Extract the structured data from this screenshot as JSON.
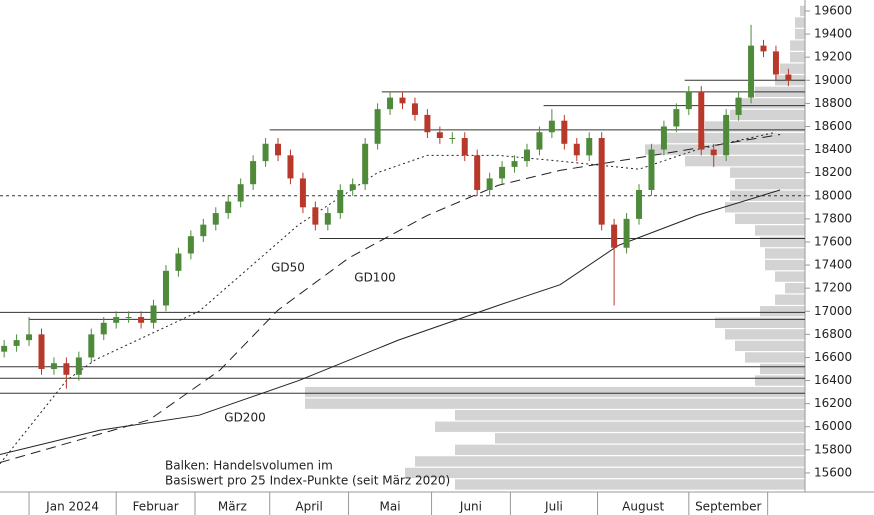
{
  "chart_data": {
    "type": "candlestick",
    "up_color": "#4e8a3a",
    "down_color": "#b8392c",
    "ma_color": "#222",
    "level_color": "#333",
    "profile_color": "#d3d3d3",
    "ylim": [
      15435,
      19695
    ],
    "yticks": [
      15600,
      15800,
      16000,
      16200,
      16400,
      16600,
      16800,
      17000,
      17200,
      17400,
      17600,
      17800,
      18000,
      18200,
      18400,
      18600,
      18800,
      19000,
      19200,
      19400,
      19600
    ],
    "xlim": [
      -7,
      187
    ],
    "xticks": [
      0,
      21,
      40,
      58,
      77,
      97,
      116,
      137,
      159,
      178
    ],
    "month_labels": [
      "Jan 2024",
      "Februar",
      "März",
      "April",
      "Mai",
      "Juni",
      "Juli",
      "August",
      "September"
    ],
    "x": [
      -6,
      -3,
      0,
      3,
      6,
      9,
      12,
      15,
      18,
      21,
      24,
      27,
      30,
      33,
      36,
      39,
      42,
      45,
      48,
      51,
      54,
      57,
      60,
      63,
      66,
      69,
      72,
      75,
      78,
      81,
      84,
      87,
      90,
      93,
      96,
      99,
      102,
      105,
      108,
      111,
      114,
      117,
      120,
      123,
      126,
      129,
      132,
      135,
      138,
      141,
      144,
      147,
      150,
      153,
      156,
      159,
      162,
      165,
      168,
      171,
      174,
      177,
      180,
      183
    ],
    "open": [
      16650,
      16700,
      16750,
      16800,
      16500,
      16550,
      16450,
      16600,
      16800,
      16900,
      16950,
      16950,
      16900,
      17050,
      17350,
      17500,
      17650,
      17750,
      17850,
      17950,
      18100,
      18300,
      18450,
      18350,
      18150,
      17900,
      17750,
      17850,
      18050,
      18100,
      18450,
      18750,
      18850,
      18800,
      18700,
      18550,
      18500,
      18500,
      18350,
      18050,
      18150,
      18250,
      18300,
      18400,
      18550,
      18650,
      18450,
      18350,
      18500,
      17750,
      17550,
      17800,
      18050,
      18400,
      18600,
      18750,
      18900,
      18400,
      18350,
      18700,
      18850,
      19300,
      19250,
      19050
    ],
    "high": [
      16750,
      16800,
      16950,
      16850,
      16600,
      16600,
      16650,
      16850,
      16950,
      17000,
      17000,
      17000,
      17100,
      17400,
      17550,
      17700,
      17800,
      17900,
      18000,
      18150,
      18350,
      18500,
      18500,
      18400,
      18200,
      17950,
      17900,
      18100,
      18150,
      18500,
      18800,
      18900,
      18900,
      18850,
      18750,
      18600,
      18550,
      18550,
      18400,
      18200,
      18300,
      18350,
      18450,
      18600,
      18750,
      18700,
      18500,
      18550,
      18550,
      17800,
      17850,
      18100,
      18450,
      18650,
      18800,
      18950,
      18950,
      18450,
      18750,
      18900,
      19480,
      19350,
      19300,
      19100
    ],
    "low": [
      16600,
      16650,
      16700,
      16450,
      16450,
      16330,
      16400,
      16550,
      16750,
      16850,
      16900,
      16850,
      16850,
      17000,
      17300,
      17450,
      17600,
      17700,
      17800,
      17900,
      18050,
      18250,
      18300,
      18100,
      17850,
      17700,
      17700,
      17800,
      18000,
      18050,
      18400,
      18700,
      18750,
      18650,
      18500,
      18450,
      18450,
      18300,
      18000,
      18000,
      18100,
      18200,
      18250,
      18350,
      18500,
      18400,
      18300,
      18300,
      17700,
      17050,
      17500,
      17750,
      18000,
      18350,
      18550,
      18700,
      18350,
      18250,
      18300,
      18650,
      18800,
      19200,
      19000,
      18950
    ],
    "close": [
      16700,
      16750,
      16800,
      16500,
      16550,
      16450,
      16600,
      16800,
      16900,
      16950,
      16950,
      16900,
      17050,
      17350,
      17500,
      17650,
      17750,
      17850,
      17950,
      18100,
      18300,
      18450,
      18350,
      18150,
      17900,
      17750,
      17850,
      18050,
      18100,
      18450,
      18750,
      18850,
      18800,
      18700,
      18550,
      18500,
      18500,
      18350,
      18050,
      18150,
      18250,
      18300,
      18400,
      18550,
      18650,
      18450,
      18350,
      18500,
      17750,
      17550,
      17800,
      18050,
      18400,
      18600,
      18750,
      18900,
      18400,
      18350,
      18700,
      18850,
      19300,
      19250,
      19050,
      19000
    ],
    "averages": [
      {
        "name": "GD50",
        "dash": "2,3",
        "x": [
          -7,
          9,
          16,
          41,
          65,
          84,
          96,
          113,
          128,
          147,
          161,
          180
        ],
        "values": [
          15680,
          16400,
          16580,
          17000,
          17750,
          18200,
          18350,
          18350,
          18300,
          18230,
          18400,
          18550
        ]
      },
      {
        "name": "GD100",
        "dash": "10,6",
        "x": [
          -7,
          29,
          46,
          60,
          77,
          96,
          113,
          128,
          147,
          181
        ],
        "values": [
          15690,
          16060,
          16490,
          17010,
          17460,
          17830,
          18090,
          18220,
          18330,
          18530
        ]
      },
      {
        "name": "GD200",
        "dash": "",
        "x": [
          -7,
          17,
          41,
          65,
          89,
          113,
          128,
          142,
          161,
          181
        ],
        "values": [
          15760,
          15970,
          16100,
          16400,
          16750,
          17050,
          17230,
          17570,
          17830,
          18050
        ]
      }
    ],
    "levels": [
      {
        "value": 19000,
        "from": 158
      },
      {
        "value": 18900,
        "from": 85
      },
      {
        "value": 18780,
        "from": 124
      },
      {
        "value": 18570,
        "from": 58
      },
      {
        "value": 17630,
        "from": 70
      },
      {
        "value": 16990,
        "from": -7
      },
      {
        "value": 16930,
        "from": 0
      },
      {
        "value": 16520,
        "from": -7
      },
      {
        "value": 16420,
        "from": -7
      },
      {
        "value": 16290,
        "from": -7
      }
    ],
    "dotted_level": 18000,
    "profile": {
      "levels": [
        15500,
        15600,
        15700,
        15800,
        15900,
        16000,
        16100,
        16200,
        16300,
        16400,
        16500,
        16600,
        16700,
        16800,
        16900,
        17000,
        17100,
        17200,
        17300,
        17400,
        17500,
        17600,
        17700,
        17800,
        17900,
        18000,
        18100,
        18200,
        18300,
        18400,
        18500,
        18600,
        18700,
        18800,
        18900,
        19000,
        19100,
        19200,
        19300,
        19400,
        19500,
        19600
      ],
      "values": [
        70,
        80,
        78,
        70,
        62,
        74,
        70,
        100,
        100,
        10,
        9,
        12,
        14,
        16,
        18,
        9,
        6,
        4,
        6,
        8,
        8,
        9,
        10,
        14,
        16,
        15,
        14,
        15,
        24,
        32,
        28,
        20,
        15,
        14,
        10,
        6,
        5,
        3,
        3,
        2,
        2,
        1
      ]
    },
    "note": [
      "Balken: Handelsvolumen im",
      "Basiswert pro 25 Index-Punkte (seit März 2020)"
    ]
  }
}
